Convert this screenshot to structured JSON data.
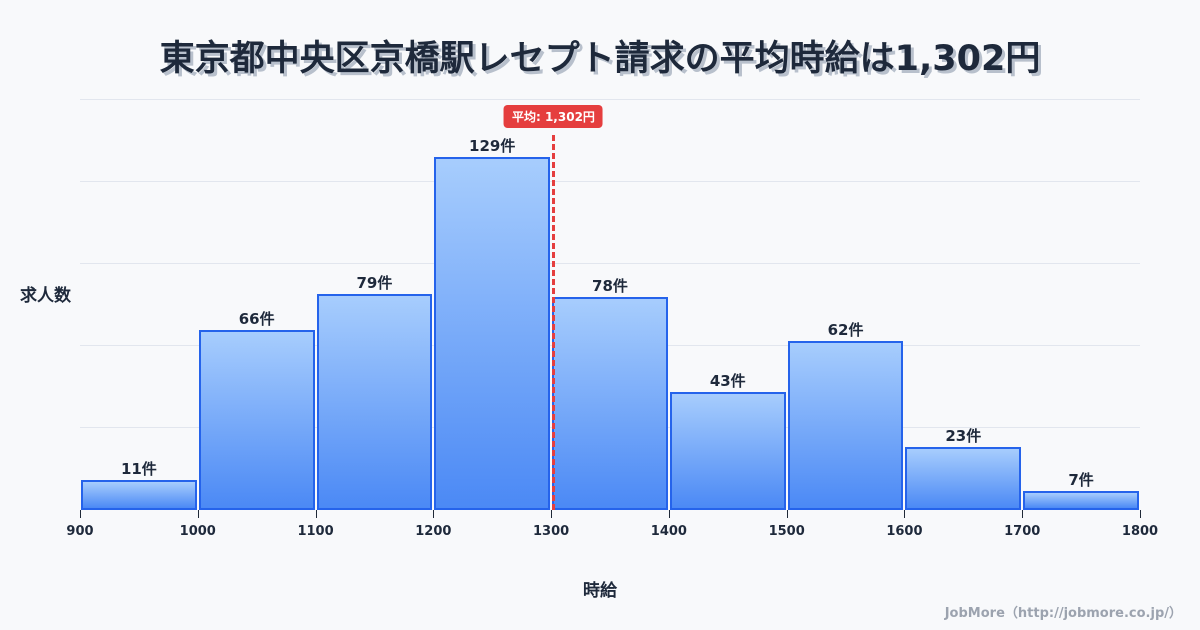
{
  "title": "東京都中央区京橋駅レセプト請求の平均時給は1,302円",
  "mean_badge": "平均: 1,302円",
  "ylabel": "求人数",
  "xlabel": "時給",
  "credit": "JobMore（http://jobmore.co.jp/）",
  "colors": {
    "bar_border": "#2563eb",
    "bar_top": "#a7cdfd",
    "bar_bottom": "#4b89f5",
    "mean_line": "#e53e3e",
    "title": "#1e293b",
    "background": "#f8f9fb"
  },
  "chart_data": {
    "type": "bar",
    "title": "東京都中央区京橋駅レセプト請求の平均時給は1,302円",
    "xlabel": "時給",
    "ylabel": "求人数",
    "bins": [
      [
        900,
        1000
      ],
      [
        1000,
        1100
      ],
      [
        1100,
        1200
      ],
      [
        1200,
        1300
      ],
      [
        1300,
        1400
      ],
      [
        1400,
        1500
      ],
      [
        1500,
        1600
      ],
      [
        1600,
        1700
      ],
      [
        1700,
        1800
      ]
    ],
    "categories": [
      "900-1000",
      "1000-1100",
      "1100-1200",
      "1200-1300",
      "1300-1400",
      "1400-1500",
      "1500-1600",
      "1600-1700",
      "1700-1800"
    ],
    "values": [
      11,
      66,
      79,
      129,
      78,
      43,
      62,
      23,
      7
    ],
    "bar_labels": [
      "11件",
      "66件",
      "79件",
      "129件",
      "78件",
      "43件",
      "62件",
      "23件",
      "7件"
    ],
    "x_ticks": [
      "900",
      "1000",
      "1100",
      "1200",
      "1300",
      "1400",
      "1500",
      "1600",
      "1700",
      "1800"
    ],
    "xlim": [
      900,
      1800
    ],
    "ylim": [
      0,
      150
    ],
    "grid": true,
    "y_grid_step": 30,
    "annotations": [
      {
        "type": "vline",
        "x": 1302,
        "label": "平均: 1,302円",
        "style": "dashed",
        "color": "#e53e3e"
      }
    ],
    "legend": null
  }
}
